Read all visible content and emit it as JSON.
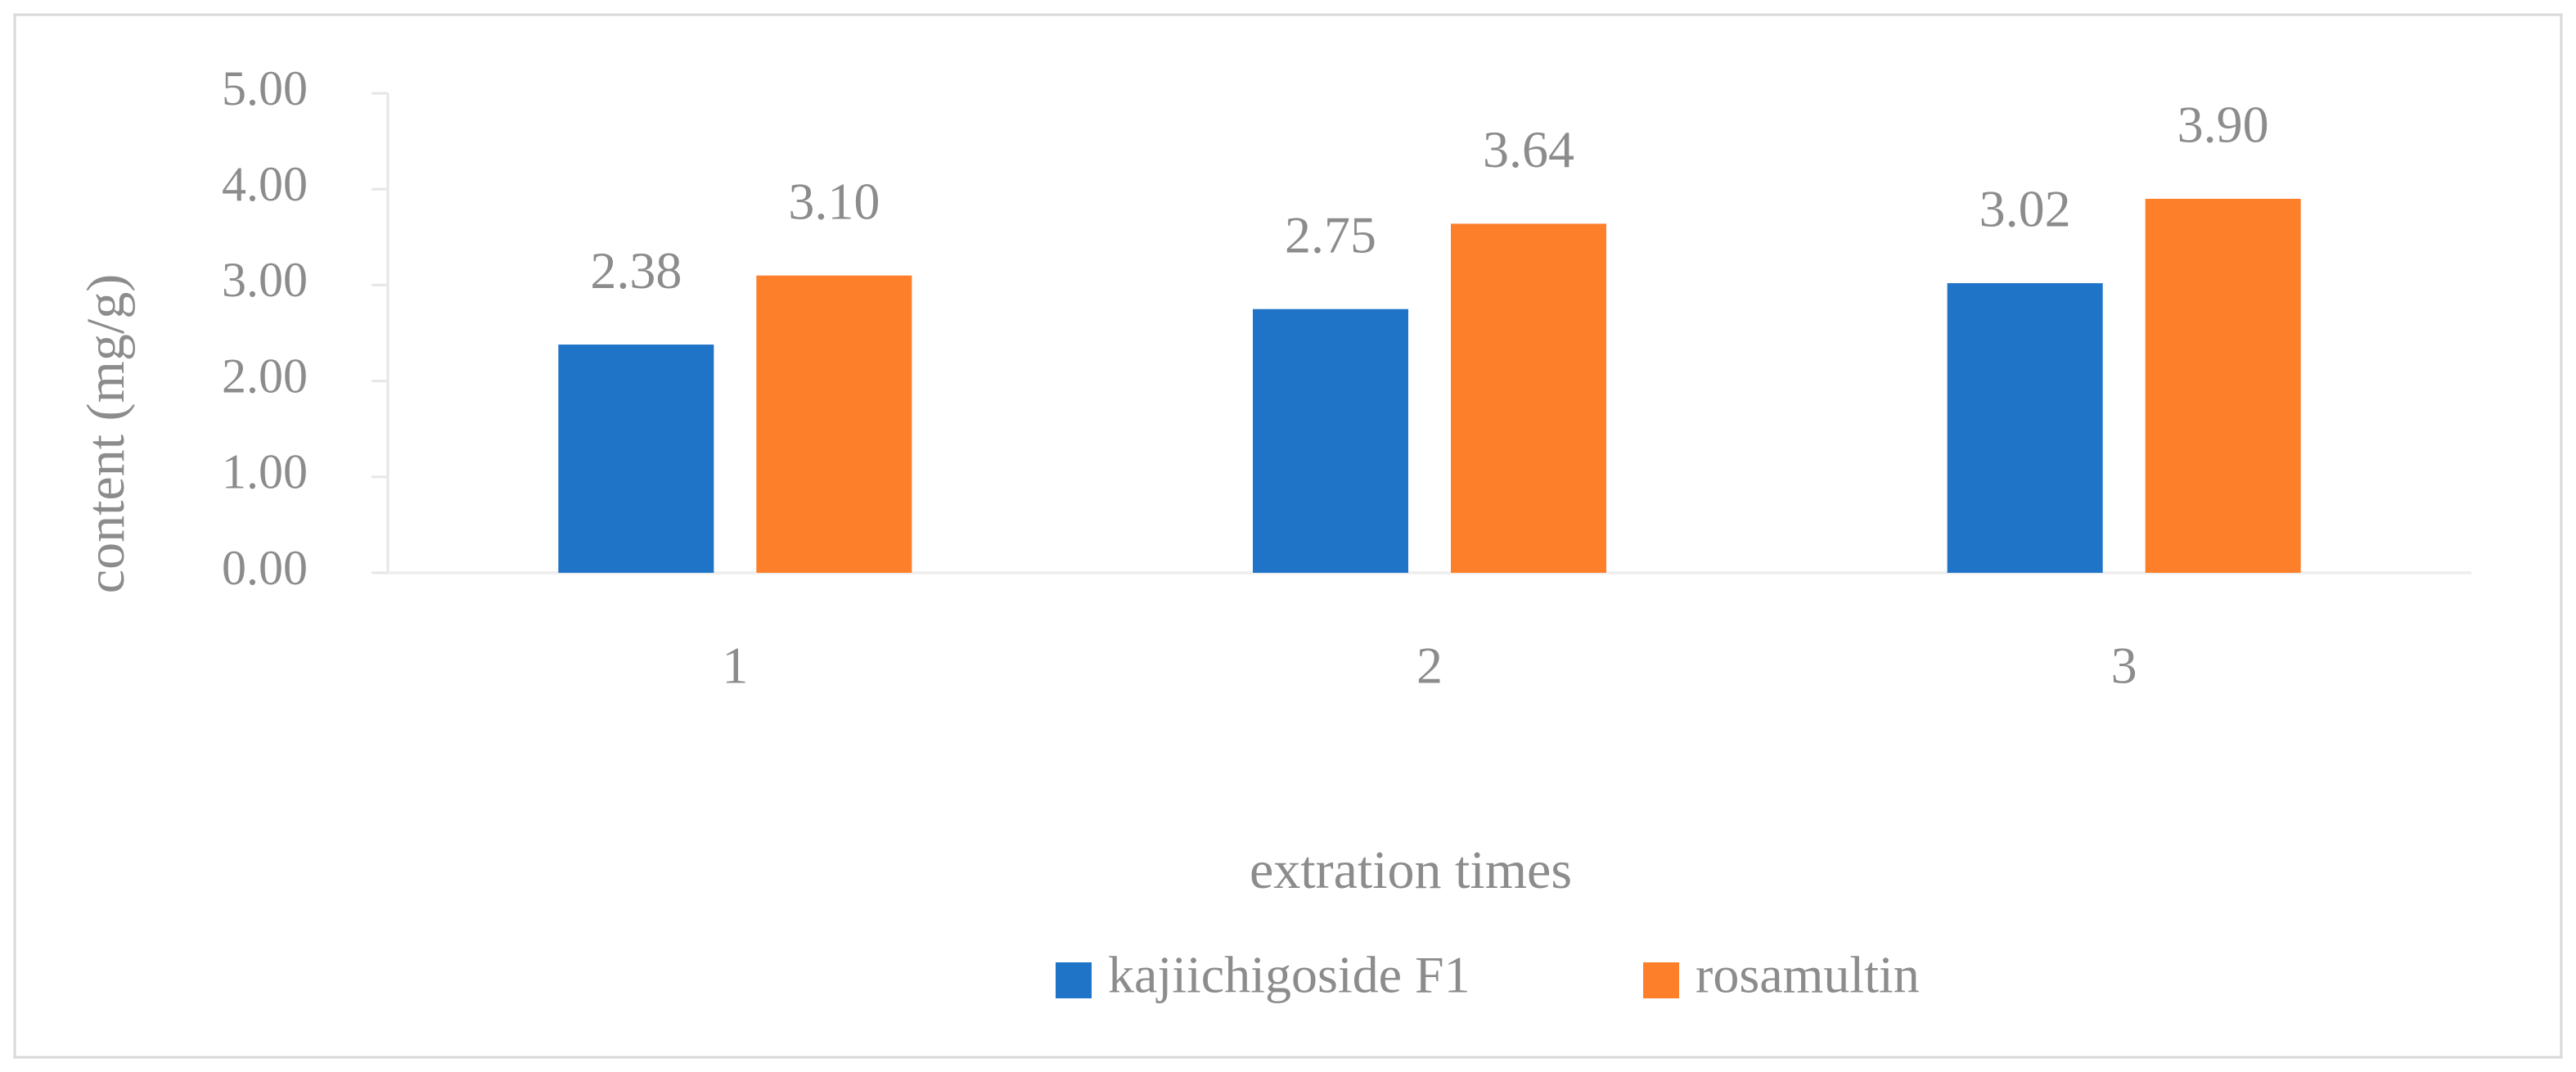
{
  "chart_data": {
    "type": "bar",
    "x_label": "extration times",
    "y_label": "content (mg/g)",
    "categories": [
      "1",
      "2",
      "3"
    ],
    "series": [
      {
        "name": "kajiichigoside F1",
        "color": "#1f74c8",
        "values": [
          2.38,
          2.75,
          3.02
        ],
        "value_labels": [
          "2.38",
          "2.75",
          "3.02"
        ]
      },
      {
        "name": "rosamultin",
        "color": "#fe7f2a",
        "values": [
          3.1,
          3.64,
          3.9
        ],
        "value_labels": [
          "3.10",
          "3.64",
          "3.90"
        ]
      }
    ],
    "ylim": [
      0,
      5
    ],
    "yticks": [
      {
        "value": 0,
        "label": "0.00"
      },
      {
        "value": 1,
        "label": "1.00"
      },
      {
        "value": 2,
        "label": "2.00"
      },
      {
        "value": 3,
        "label": "3.00"
      },
      {
        "value": 4,
        "label": "4.00"
      },
      {
        "value": 5,
        "label": "5.00"
      }
    ],
    "grid": false,
    "legend": "bottom"
  }
}
